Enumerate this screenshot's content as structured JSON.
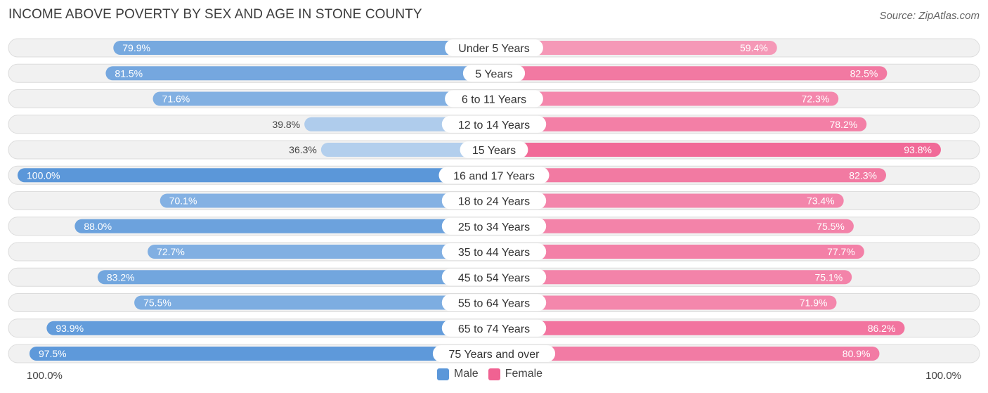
{
  "chart_data": {
    "type": "bar",
    "orientation": "horizontal-diverging",
    "title": "INCOME ABOVE POVERTY BY SEX AND AGE IN STONE COUNTY",
    "source": "Source: ZipAtlas.com",
    "categories": [
      "Under 5 Years",
      "5 Years",
      "6 to 11 Years",
      "12 to 14 Years",
      "15 Years",
      "16 and 17 Years",
      "18 to 24 Years",
      "25 to 34 Years",
      "35 to 44 Years",
      "45 to 54 Years",
      "55 to 64 Years",
      "65 to 74 Years",
      "75 Years and over"
    ],
    "series": [
      {
        "name": "Male",
        "color": "#5b97d9",
        "values": [
          79.9,
          81.5,
          71.6,
          39.8,
          36.3,
          100.0,
          70.1,
          88.0,
          72.7,
          83.2,
          75.5,
          93.9,
          97.5
        ],
        "labels": [
          "79.9%",
          "81.5%",
          "71.6%",
          "39.8%",
          "36.3%",
          "100.0%",
          "70.1%",
          "88.0%",
          "72.7%",
          "83.2%",
          "75.5%",
          "93.9%",
          "97.5%"
        ]
      },
      {
        "name": "Female",
        "color": "#f06292",
        "values": [
          59.4,
          82.5,
          72.3,
          78.2,
          93.8,
          82.3,
          73.4,
          75.5,
          77.7,
          75.1,
          71.9,
          86.2,
          80.9
        ],
        "labels": [
          "59.4%",
          "82.5%",
          "72.3%",
          "78.2%",
          "93.8%",
          "82.3%",
          "73.4%",
          "75.5%",
          "77.7%",
          "75.1%",
          "71.9%",
          "86.2%",
          "80.9%"
        ]
      }
    ],
    "xlim": [
      0,
      100
    ],
    "axis_left_label": "100.0%",
    "axis_right_label": "100.0%",
    "legend": [
      "Male",
      "Female"
    ]
  }
}
